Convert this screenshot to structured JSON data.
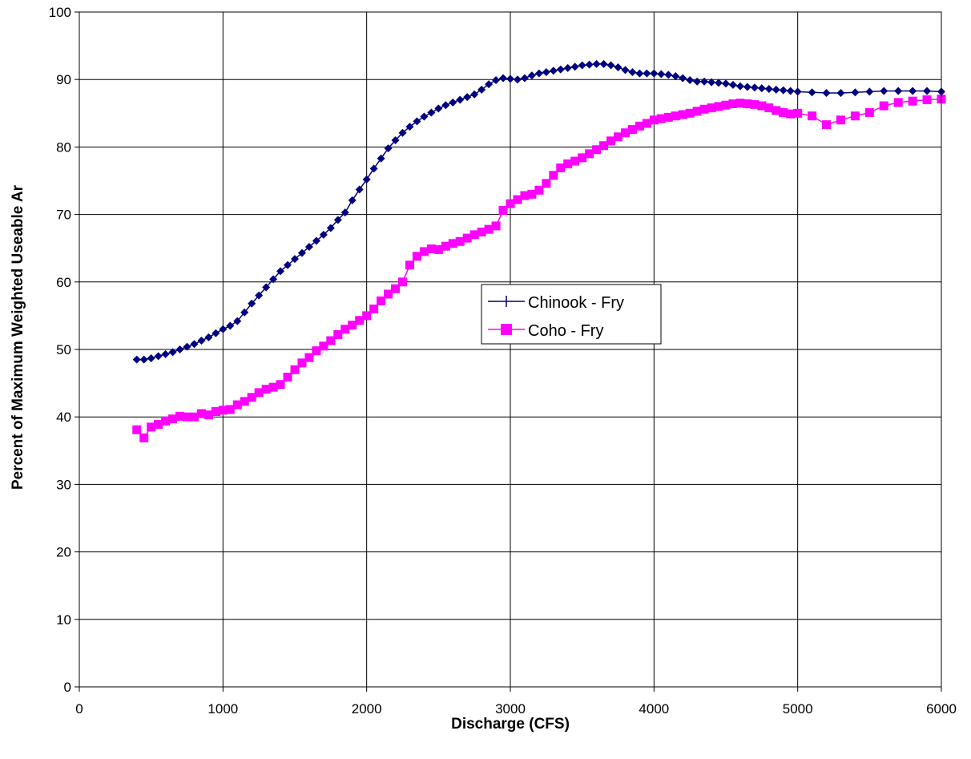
{
  "chart_data": {
    "type": "line",
    "title": "",
    "xlabel": "Discharge (CFS)",
    "ylabel": "Percent of Maximum Weighted Useable Ar",
    "xlim": [
      0,
      6000
    ],
    "ylim": [
      0,
      100
    ],
    "x_ticks": [
      "0",
      "1000",
      "2000",
      "3000",
      "4000",
      "5000",
      "6000"
    ],
    "y_ticks": [
      "0",
      "10",
      "20",
      "30",
      "40",
      "50",
      "60",
      "70",
      "80",
      "90",
      "100"
    ],
    "grid": true,
    "legend_position": "center-right",
    "series": [
      {
        "name": "Chinook - Fry",
        "color": "#000080",
        "marker": "diamond",
        "x": [
          400,
          450,
          500,
          550,
          600,
          650,
          700,
          750,
          800,
          850,
          900,
          950,
          1000,
          1050,
          1100,
          1150,
          1200,
          1250,
          1300,
          1350,
          1400,
          1450,
          1500,
          1550,
          1600,
          1650,
          1700,
          1750,
          1800,
          1850,
          1900,
          1950,
          2000,
          2050,
          2100,
          2150,
          2200,
          2250,
          2300,
          2350,
          2400,
          2450,
          2500,
          2550,
          2600,
          2650,
          2700,
          2750,
          2800,
          2850,
          2900,
          2950,
          3000,
          3050,
          3100,
          3150,
          3200,
          3250,
          3300,
          3350,
          3400,
          3450,
          3500,
          3550,
          3600,
          3650,
          3700,
          3750,
          3800,
          3850,
          3900,
          3950,
          4000,
          4050,
          4100,
          4150,
          4200,
          4250,
          4300,
          4350,
          4400,
          4450,
          4500,
          4550,
          4600,
          4650,
          4700,
          4750,
          4800,
          4850,
          4900,
          4950,
          5000,
          5100,
          5200,
          5300,
          5400,
          5500,
          5600,
          5700,
          5800,
          5900,
          6000
        ],
        "y": [
          48.5,
          48.5,
          48.7,
          49.0,
          49.3,
          49.6,
          50.0,
          50.4,
          50.8,
          51.3,
          51.8,
          52.4,
          53.0,
          53.5,
          54.2,
          55.5,
          56.8,
          58.0,
          59.2,
          60.4,
          61.6,
          62.5,
          63.4,
          64.3,
          65.2,
          66.1,
          67.0,
          68.0,
          69.2,
          70.3,
          72.1,
          73.7,
          75.2,
          76.8,
          78.3,
          79.8,
          81.0,
          82.1,
          83.0,
          83.8,
          84.5,
          85.1,
          85.7,
          86.2,
          86.6,
          87.0,
          87.4,
          87.8,
          88.5,
          89.3,
          89.9,
          90.2,
          90.1,
          90.0,
          90.2,
          90.6,
          90.9,
          91.1,
          91.3,
          91.5,
          91.7,
          91.9,
          92.1,
          92.2,
          92.3,
          92.3,
          92.1,
          91.8,
          91.4,
          91.1,
          90.9,
          90.9,
          90.9,
          90.8,
          90.7,
          90.5,
          90.2,
          89.9,
          89.7,
          89.7,
          89.6,
          89.5,
          89.4,
          89.2,
          89.0,
          88.9,
          88.8,
          88.7,
          88.6,
          88.5,
          88.4,
          88.3,
          88.2,
          88.1,
          88.0,
          88.0,
          88.1,
          88.2,
          88.3,
          88.3,
          88.3,
          88.3,
          88.2
        ],
        "y_note": ""
      },
      {
        "name": "Coho - Fry",
        "color": "#FF00FF",
        "marker": "square",
        "x": [
          400,
          450,
          500,
          550,
          600,
          650,
          700,
          750,
          800,
          850,
          900,
          950,
          1000,
          1050,
          1100,
          1150,
          1200,
          1250,
          1300,
          1350,
          1400,
          1450,
          1500,
          1550,
          1600,
          1650,
          1700,
          1750,
          1800,
          1850,
          1900,
          1950,
          2000,
          2050,
          2100,
          2150,
          2200,
          2250,
          2300,
          2350,
          2400,
          2450,
          2500,
          2550,
          2600,
          2650,
          2700,
          2750,
          2800,
          2850,
          2900,
          2950,
          3000,
          3050,
          3100,
          3150,
          3200,
          3250,
          3300,
          3350,
          3400,
          3450,
          3500,
          3550,
          3600,
          3650,
          3700,
          3750,
          3800,
          3850,
          3900,
          3950,
          4000,
          4050,
          4100,
          4150,
          4200,
          4250,
          4300,
          4350,
          4400,
          4450,
          4500,
          4550,
          4600,
          4650,
          4700,
          4750,
          4800,
          4850,
          4900,
          4950,
          5000,
          5100,
          5200,
          5300,
          5400,
          5500,
          5600,
          5700,
          5800,
          5900,
          6000
        ],
        "y": [
          38.1,
          36.9,
          38.5,
          38.9,
          39.4,
          39.7,
          40.1,
          40.0,
          40.0,
          40.5,
          40.3,
          40.8,
          41.0,
          41.1,
          41.8,
          42.3,
          42.9,
          43.6,
          44.1,
          44.4,
          44.8,
          45.9,
          47.0,
          48.0,
          48.8,
          49.8,
          50.5,
          51.3,
          52.2,
          53.0,
          53.6,
          54.3,
          55.0,
          56.0,
          57.2,
          58.2,
          59.0,
          60.0,
          62.5,
          63.8,
          64.5,
          64.9,
          64.8,
          65.3,
          65.7,
          66.0,
          66.5,
          67.0,
          67.4,
          67.8,
          68.3,
          70.6,
          71.6,
          72.2,
          72.8,
          73.0,
          73.6,
          74.6,
          75.8,
          76.9,
          77.5,
          77.9,
          78.4,
          79.0,
          79.6,
          80.2,
          80.9,
          81.5,
          82.1,
          82.6,
          83.1,
          83.5,
          84.0,
          84.2,
          84.4,
          84.6,
          84.8,
          85.0,
          85.3,
          85.6,
          85.8,
          86.0,
          86.2,
          86.4,
          86.5,
          86.4,
          86.3,
          86.1,
          85.8,
          85.4,
          85.1,
          84.9,
          85.0,
          84.6,
          83.3,
          84.0,
          84.6,
          85.1,
          86.1,
          86.6,
          86.8,
          87.0,
          87.1
        ],
        "y_note": ""
      }
    ]
  }
}
